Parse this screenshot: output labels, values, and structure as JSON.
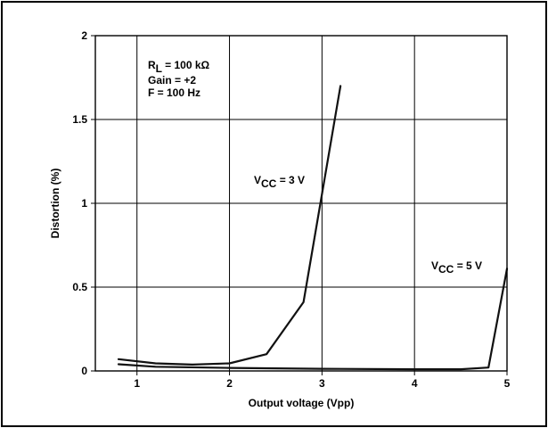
{
  "chart_data": {
    "type": "line",
    "xlabel": "Output voltage (Vpp)",
    "ylabel": "Distortion (%)",
    "xlim": [
      0.55,
      5
    ],
    "ylim": [
      0,
      2
    ],
    "xticks": [
      1,
      2,
      3,
      4,
      5
    ],
    "yticks": [
      0,
      0.5,
      1,
      1.5,
      2
    ],
    "xtick_labels": [
      "1",
      "2",
      "3",
      "4",
      "5"
    ],
    "ytick_labels": [
      "0",
      "0.5",
      "1",
      "1.5",
      "2"
    ],
    "grid": true,
    "conditions": {
      "line1_main": "R",
      "line1_sub": "L",
      "line1_rest": " = 100 kΩ",
      "line2": "Gain = +2",
      "line3": "F = 100 Hz"
    },
    "series": [
      {
        "label_main": "V",
        "label_sub": "CC",
        "label_rest": " = 3 V",
        "x": [
          0.8,
          1.2,
          1.6,
          2.0,
          2.4,
          2.8,
          3.2
        ],
        "y": [
          0.07,
          0.045,
          0.038,
          0.045,
          0.1,
          0.41,
          1.7
        ]
      },
      {
        "label_main": "V",
        "label_sub": "CC",
        "label_rest": " = 5 V",
        "x": [
          0.8,
          1.2,
          2.0,
          3.0,
          4.0,
          4.5,
          4.8,
          5.0
        ],
        "y": [
          0.04,
          0.025,
          0.018,
          0.013,
          0.01,
          0.01,
          0.02,
          0.61
        ]
      }
    ]
  }
}
